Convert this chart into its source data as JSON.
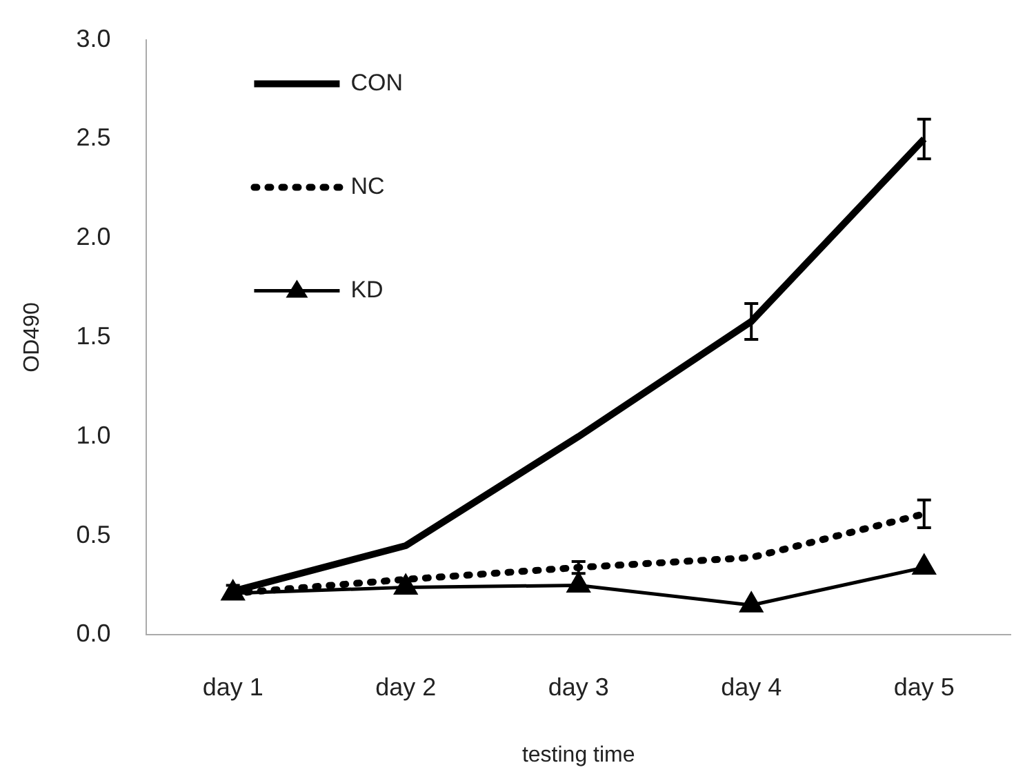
{
  "chart_data": {
    "type": "line",
    "xlabel": "testing time",
    "ylabel": "OD490",
    "categories": [
      "day 1",
      "day 2",
      "day 3",
      "day 4",
      "day 5"
    ],
    "ylim": [
      0,
      3
    ],
    "yticks": [
      {
        "value": 0,
        "label": "0.0"
      },
      {
        "value": 0.5,
        "label": "0.5"
      },
      {
        "value": 1,
        "label": "1.0"
      },
      {
        "value": 1.5,
        "label": "1.5"
      },
      {
        "value": 2,
        "label": "2.0"
      },
      {
        "value": 2.5,
        "label": "2.5"
      },
      {
        "value": 3,
        "label": "3.0"
      }
    ],
    "grid": false,
    "legend": "top left",
    "series": [
      {
        "name": "CON",
        "color": "#000000",
        "line_style": "solid",
        "marker": "none",
        "values": [
          0.22,
          0.45,
          1.0,
          1.58,
          2.5
        ],
        "errors": [
          0.03,
          null,
          null,
          0.09,
          0.1
        ]
      },
      {
        "name": "NC",
        "color": "#000000",
        "line_style": "dotted",
        "marker": "none",
        "values": [
          0.21,
          0.28,
          0.34,
          0.39,
          0.61
        ],
        "errors": [
          null,
          null,
          0.03,
          null,
          0.07
        ]
      },
      {
        "name": "KD",
        "color": "#000000",
        "line_style": "solid",
        "marker": "triangle",
        "values": [
          0.21,
          0.24,
          0.25,
          0.15,
          0.34
        ]
      }
    ]
  }
}
